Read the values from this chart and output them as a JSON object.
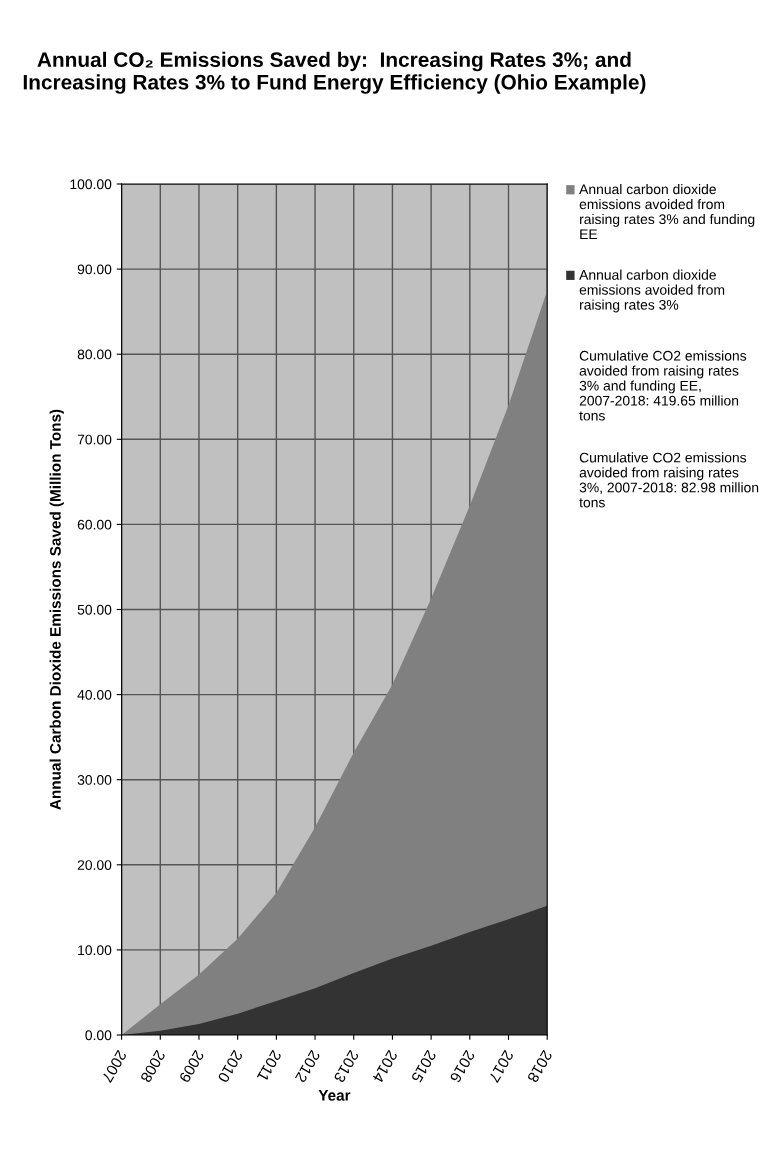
{
  "chart_data": {
    "type": "area",
    "title": "Annual CO₂ Emissions Saved by:  Increasing Rates 3%; and Increasing Rates 3% to Fund Energy Efficiency (Ohio Example)",
    "xlabel": "Year",
    "ylabel": "Annual Carbon Dioxide Emissions Saved (Million Tons)",
    "x": [
      2007,
      2008,
      2009,
      2010,
      2011,
      2012,
      2013,
      2014,
      2015,
      2016,
      2017,
      2018
    ],
    "series": [
      {
        "name": "Annual carbon dioxide emissions avoided from raising rates 3% and funding EE",
        "color": "#808080",
        "values": [
          0,
          3.6,
          7.1,
          11.3,
          16.7,
          24.4,
          33.2,
          41.2,
          51.3,
          62.2,
          74.0,
          87.5
        ]
      },
      {
        "name": "Annual carbon dioxide emissions avoided from raising rates 3%",
        "color": "#333333",
        "values": [
          0,
          0.5,
          1.3,
          2.5,
          4.0,
          5.5,
          7.3,
          9.0,
          10.5,
          12.1,
          13.6,
          15.2
        ]
      }
    ],
    "xlim": [
      2007,
      2018
    ],
    "xticks": [
      2007,
      2008,
      2009,
      2010,
      2011,
      2012,
      2013,
      2014,
      2015,
      2016,
      2017,
      2018
    ],
    "ylim": [
      0,
      100
    ],
    "yticks": [
      {
        "value": 0,
        "label": "0.00"
      },
      {
        "value": 10,
        "label": "10.00"
      },
      {
        "value": 20,
        "label": "20.00"
      },
      {
        "value": 30,
        "label": "30.00"
      },
      {
        "value": 40,
        "label": "40.00"
      },
      {
        "value": 50,
        "label": "50.00"
      },
      {
        "value": 60,
        "label": "60.00"
      },
      {
        "value": 70,
        "label": "70.00"
      },
      {
        "value": 80,
        "label": "80.00"
      },
      {
        "value": 90,
        "label": "90.00"
      },
      {
        "value": 100,
        "label": "100.00"
      }
    ],
    "grid": true,
    "legend": "right",
    "annotations": [
      "Cumulative CO2 emissions avoided from raising rates 3% and funding EE, 2007-2018: 419.65 million tons",
      "Cumulative CO2 emissions avoided from raising rates 3%, 2007-2018: 82.98 million tons"
    ]
  }
}
